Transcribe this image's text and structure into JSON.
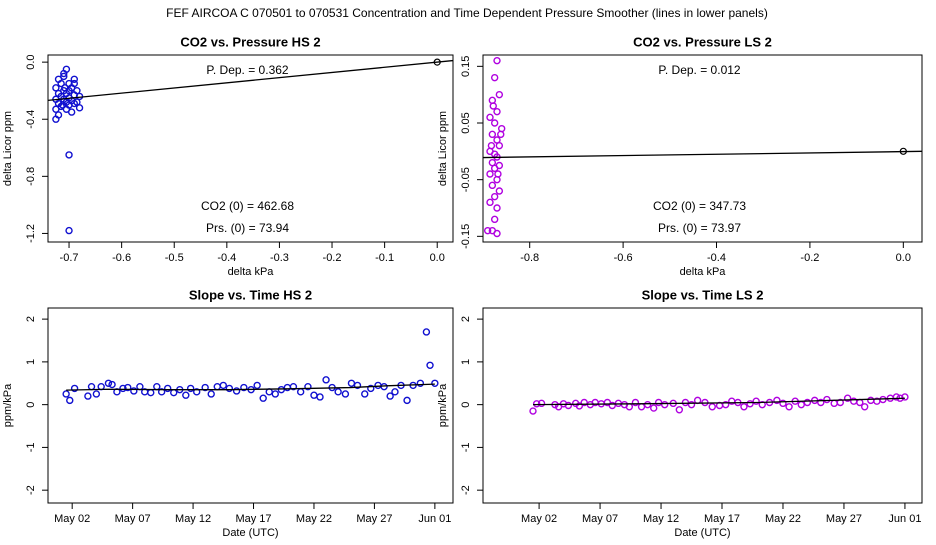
{
  "title": "FEF   AIRCOA C   070501 to 070531   Concentration and Time Dependent Pressure Smoother (lines in lower panels)",
  "chart_data": [
    {
      "type": "scatter",
      "title": "CO2 vs. Pressure HS 2",
      "xlabel": "delta kPa",
      "ylabel": "delta Licor ppm",
      "xlim": [
        -0.74,
        0.03
      ],
      "ylim": [
        -1.26,
        0.05
      ],
      "xticks": [
        -0.7,
        -0.6,
        -0.5,
        -0.4,
        -0.3,
        -0.2,
        -0.1,
        {
          "value": 0,
          "label": "0.0"
        }
      ],
      "yticks": [
        {
          "value": 0,
          "label": "0.0"
        },
        -0.4,
        -0.8,
        -1.2
      ],
      "color": "#1010d0",
      "x": [
        -0.705,
        -0.71,
        -0.72,
        -0.69,
        -0.715,
        -0.7,
        -0.725,
        -0.695,
        -0.71,
        -0.7,
        -0.685,
        -0.72,
        -0.705,
        -0.69,
        -0.715,
        -0.7,
        -0.68,
        -0.725,
        -0.71,
        -0.695,
        -0.705,
        -0.72,
        -0.69,
        -0.7,
        -0.715,
        -0.68,
        -0.725,
        -0.705,
        -0.695,
        -0.72,
        -0.725,
        -0.7,
        -0.7,
        -0.71,
        -0.69,
        -0.685,
        -0.708,
        -0.712
      ],
      "values": [
        -0.05,
        -0.1,
        -0.12,
        -0.12,
        -0.15,
        -0.15,
        -0.18,
        -0.18,
        -0.2,
        -0.2,
        -0.2,
        -0.22,
        -0.22,
        -0.23,
        -0.24,
        -0.25,
        -0.24,
        -0.26,
        -0.26,
        -0.27,
        -0.28,
        -0.29,
        -0.29,
        -0.3,
        -0.31,
        -0.32,
        -0.33,
        -0.33,
        -0.35,
        -0.37,
        -0.4,
        -0.65,
        -1.18,
        -0.08,
        -0.15,
        -0.28,
        -0.18,
        -0.3
      ],
      "line": {
        "color": "#000000",
        "x": [
          -0.74,
          0.03
        ],
        "values": [
          -0.268,
          0.011
        ]
      },
      "pivot": {
        "x": 0,
        "y": 0
      },
      "annotations": [
        "P. Dep. =  0.362",
        "CO2 (0) =  462.68",
        "Prs. (0) =  73.94"
      ]
    },
    {
      "type": "scatter",
      "title": "CO2 vs. Pressure LS 2",
      "xlabel": "delta kPa",
      "ylabel": "delta Licor ppm",
      "xlim": [
        -0.9,
        0.04
      ],
      "ylim": [
        -0.16,
        0.17
      ],
      "xticks": [
        -0.8,
        -0.6,
        -0.4,
        -0.2,
        {
          "value": 0,
          "label": "0.0"
        }
      ],
      "yticks": [
        -0.15,
        -0.05,
        0.05,
        0.15
      ],
      "color": "#b000e0",
      "x": [
        -0.87,
        -0.875,
        -0.865,
        -0.88,
        -0.87,
        -0.885,
        -0.875,
        -0.86,
        -0.88,
        -0.87,
        -0.865,
        -0.885,
        -0.875,
        -0.87,
        -0.88,
        -0.865,
        -0.875,
        -0.885,
        -0.87,
        -0.88,
        -0.865,
        -0.875,
        -0.885,
        -0.87,
        -0.875,
        -0.88,
        -0.87,
        -0.89,
        -0.862,
        -0.878,
        -0.868,
        -0.882
      ],
      "values": [
        0.16,
        0.13,
        0.1,
        0.09,
        0.07,
        0.06,
        0.05,
        0.04,
        0.03,
        0.02,
        0.01,
        0.0,
        -0.005,
        -0.01,
        -0.02,
        -0.025,
        -0.03,
        -0.04,
        -0.05,
        -0.06,
        -0.07,
        -0.08,
        -0.09,
        -0.1,
        -0.12,
        -0.14,
        -0.145,
        -0.14,
        0.03,
        0.08,
        -0.04,
        0.01
      ],
      "line": {
        "color": "#000000",
        "x": [
          -0.9,
          0.04
        ],
        "values": [
          -0.011,
          0.0
        ]
      },
      "pivot": {
        "x": 0,
        "y": 0
      },
      "annotations": [
        "P. Dep. =  0.012",
        "CO2 (0) =  347.73",
        "Prs. (0) =  73.97"
      ]
    },
    {
      "type": "scatter",
      "title": "Slope vs. Time HS 2",
      "xlabel": "Date (UTC)",
      "ylabel": "ppm/kPa",
      "xlim": [
        0,
        33.5
      ],
      "ylim": [
        -2.3,
        2.26
      ],
      "xticks": [
        {
          "value": 2,
          "label": "May 02"
        },
        {
          "value": 7,
          "label": "May 07"
        },
        {
          "value": 12,
          "label": "May 12"
        },
        {
          "value": 17,
          "label": "May 17"
        },
        {
          "value": 22,
          "label": "May 22"
        },
        {
          "value": 27,
          "label": "May 27"
        },
        {
          "value": 32,
          "label": "Jun 01"
        }
      ],
      "yticks": [
        -2,
        -1,
        0,
        1,
        2
      ],
      "color": "#1010d0",
      "x": [
        1.5,
        1.8,
        2.2,
        3.3,
        3.6,
        4.0,
        4.4,
        5.0,
        5.3,
        5.7,
        6.2,
        6.6,
        7.1,
        7.6,
        8.0,
        8.5,
        9.0,
        9.4,
        9.9,
        10.4,
        10.9,
        11.4,
        11.8,
        12.3,
        13.0,
        13.5,
        14.0,
        14.5,
        15.0,
        15.6,
        16.2,
        16.8,
        17.3,
        17.8,
        18.3,
        18.8,
        19.3,
        19.8,
        20.3,
        20.9,
        21.5,
        22.0,
        22.5,
        23.0,
        23.5,
        24.0,
        24.6,
        25.1,
        25.6,
        26.2,
        26.7,
        27.3,
        27.8,
        28.3,
        28.7,
        29.2,
        29.7,
        30.2,
        30.8,
        31.3,
        31.6,
        32.0
      ],
      "values": [
        0.25,
        0.1,
        0.38,
        0.2,
        0.42,
        0.25,
        0.42,
        0.5,
        0.47,
        0.3,
        0.38,
        0.4,
        0.32,
        0.42,
        0.3,
        0.28,
        0.42,
        0.3,
        0.38,
        0.28,
        0.35,
        0.22,
        0.38,
        0.3,
        0.4,
        0.25,
        0.42,
        0.45,
        0.38,
        0.32,
        0.4,
        0.35,
        0.45,
        0.15,
        0.3,
        0.25,
        0.35,
        0.4,
        0.42,
        0.3,
        0.42,
        0.22,
        0.18,
        0.58,
        0.4,
        0.3,
        0.25,
        0.5,
        0.45,
        0.25,
        0.38,
        0.45,
        0.42,
        0.2,
        0.3,
        0.45,
        0.1,
        0.45,
        0.5,
        1.7,
        0.92,
        0.5
      ],
      "line": {
        "color": "#000000",
        "x": [
          1.5,
          5,
          10,
          15,
          20,
          25,
          28,
          32
        ],
        "values": [
          0.34,
          0.36,
          0.35,
          0.35,
          0.37,
          0.4,
          0.44,
          0.48
        ]
      }
    },
    {
      "type": "scatter",
      "title": "Slope vs. Time LS 2",
      "xlabel": "Date (UTC)",
      "ylabel": "ppm/kPa",
      "xlim": [
        -2.6,
        33.4
      ],
      "ylim": [
        -2.3,
        2.26
      ],
      "xticks": [
        {
          "value": 2,
          "label": "May 02"
        },
        {
          "value": 7,
          "label": "May 07"
        },
        {
          "value": 12,
          "label": "May 12"
        },
        {
          "value": 17,
          "label": "May 17"
        },
        {
          "value": 22,
          "label": "May 22"
        },
        {
          "value": 27,
          "label": "May 27"
        },
        {
          "value": 32,
          "label": "Jun 01"
        }
      ],
      "yticks": [
        -2,
        -1,
        0,
        1,
        2
      ],
      "color": "#b000e0",
      "x": [
        1.5,
        1.8,
        2.2,
        3.3,
        3.6,
        4.0,
        4.4,
        5.0,
        5.3,
        5.7,
        6.2,
        6.6,
        7.1,
        7.6,
        8.0,
        8.5,
        9.0,
        9.4,
        9.9,
        10.4,
        10.9,
        11.4,
        11.8,
        12.3,
        13.0,
        13.5,
        14.0,
        14.5,
        15.0,
        15.6,
        16.2,
        16.8,
        17.3,
        17.8,
        18.3,
        18.8,
        19.3,
        19.8,
        20.3,
        20.9,
        21.5,
        22.0,
        22.5,
        23.0,
        23.5,
        24.0,
        24.6,
        25.1,
        25.6,
        26.2,
        26.7,
        27.3,
        27.8,
        28.3,
        28.7,
        29.2,
        29.7,
        30.2,
        30.8,
        31.3,
        31.6,
        32.0
      ],
      "values": [
        -0.15,
        0.02,
        0.03,
        0.0,
        -0.05,
        0.02,
        -0.02,
        0.03,
        -0.03,
        0.05,
        0.0,
        0.05,
        0.02,
        0.05,
        -0.02,
        0.03,
        0.0,
        -0.05,
        0.05,
        -0.05,
        0.0,
        -0.08,
        0.05,
        0.0,
        0.03,
        -0.12,
        0.05,
        0.0,
        0.1,
        0.05,
        -0.05,
        -0.02,
        0.0,
        0.08,
        0.05,
        -0.05,
        0.02,
        0.08,
        0.0,
        0.05,
        0.1,
        0.03,
        -0.05,
        0.08,
        0.0,
        0.05,
        0.1,
        0.05,
        0.12,
        0.03,
        0.05,
        0.15,
        0.08,
        0.05,
        -0.05,
        0.1,
        0.08,
        0.12,
        0.15,
        0.18,
        0.15,
        0.18
      ],
      "line": {
        "color": "#000000",
        "x": [
          1.5,
          10,
          20,
          32
        ],
        "values": [
          0.0,
          0.02,
          0.05,
          0.15
        ]
      }
    }
  ]
}
